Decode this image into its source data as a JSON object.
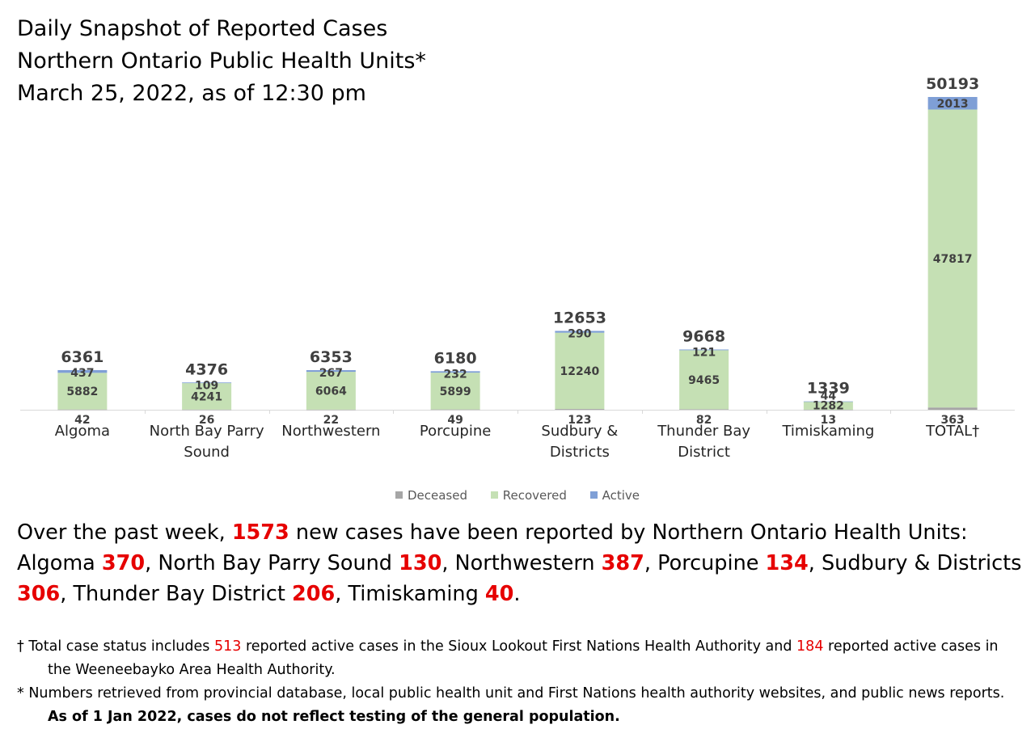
{
  "title_lines": [
    "Daily Snapshot of Reported Cases",
    "Northern Ontario Public Health Units*",
    "March 25, 2022, as of 12:30 pm"
  ],
  "colors": {
    "deceased": "#a6a6a6",
    "recovered": "#c5e0b4",
    "active": "#7f9fd6",
    "highlight": "#e60000"
  },
  "chart_data": {
    "type": "bar",
    "stacked": true,
    "categories": [
      "Algoma",
      "North Bay Parry Sound",
      "Northwestern",
      "Porcupine",
      "Sudbury & Districts",
      "Thunder Bay District",
      "Timiskaming",
      "TOTAL†"
    ],
    "category_lines": [
      [
        "Algoma"
      ],
      [
        "North Bay Parry",
        "Sound"
      ],
      [
        "Northwestern"
      ],
      [
        "Porcupine"
      ],
      [
        "Sudbury &",
        "Districts"
      ],
      [
        "Thunder Bay",
        "District"
      ],
      [
        "Timiskaming"
      ],
      [
        "TOTAL†"
      ]
    ],
    "series": [
      {
        "name": "Deceased",
        "values": [
          42,
          26,
          22,
          49,
          123,
          82,
          13,
          363
        ]
      },
      {
        "name": "Recovered",
        "values": [
          5882,
          4241,
          6064,
          5899,
          12240,
          9465,
          1282,
          47817
        ]
      },
      {
        "name": "Active",
        "values": [
          437,
          109,
          267,
          232,
          290,
          121,
          44,
          2013
        ]
      }
    ],
    "totals": [
      6361,
      4376,
      6353,
      6180,
      12653,
      9668,
      1339,
      50193
    ],
    "ylim": [
      0,
      50193
    ],
    "legend_position": "bottom",
    "grid": false
  },
  "summary": {
    "intro": "Over the past week, ",
    "total": "1573",
    "intro_end": " new cases have been reported by Northern Ontario Health Units:",
    "items": [
      {
        "name": "Algoma ",
        "value": "370",
        "sep": ", "
      },
      {
        "name": "North Bay Parry Sound ",
        "value": "130",
        "sep": ", "
      },
      {
        "name": "Northwestern ",
        "value": "387",
        "sep": ", "
      },
      {
        "name": "Porcupine ",
        "value": "134",
        "sep": ", "
      },
      {
        "name": "Sudbury & Districts ",
        "value": "306",
        "sep": ", "
      },
      {
        "name": "Thunder Bay District ",
        "value": "206",
        "sep": ", "
      },
      {
        "name": "Timiskaming ",
        "value": "40",
        "sep": "."
      }
    ]
  },
  "notes": {
    "dagger_a": "† Total case status includes ",
    "dagger_n1": "513",
    "dagger_b": " reported active cases in the Sioux Lookout First Nations Health Authority and ",
    "dagger_n2": "184",
    "dagger_c": " reported active cases in the Weeneebayko Area Health Authority.",
    "star_a": "* Numbers retrieved from provincial database, local public health unit and First Nations health authority websites, and public news reports. ",
    "star_bold": "As of 1 Jan 2022, cases do not reflect testing of the general population."
  }
}
